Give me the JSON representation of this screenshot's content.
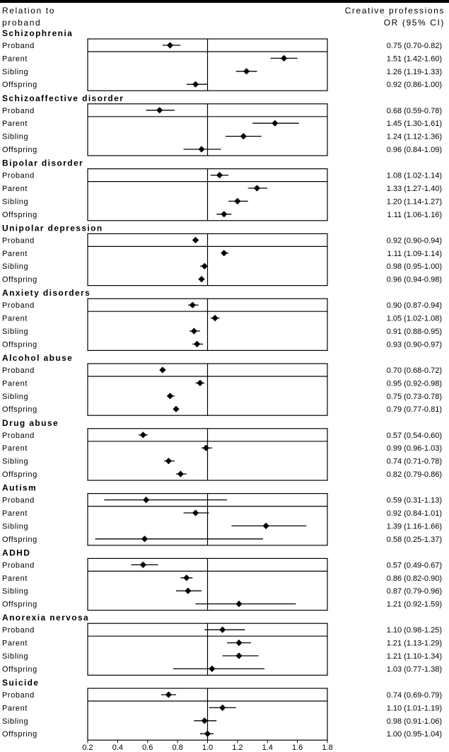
{
  "header": {
    "left_line1": "Relation to",
    "left_line2": "proband",
    "right_line1": "Creative professions",
    "right_line2": "OR (95% CI)"
  },
  "chart_data": {
    "type": "forest",
    "x_ticks": [
      "0.2",
      "0.4",
      "0.6",
      "0.8",
      "1.0",
      "1.2",
      "1.4",
      "1.6",
      "1.8"
    ],
    "xlim": [
      0.2,
      1.8
    ],
    "reference_line": 1.0,
    "groups": [
      {
        "name": "Schizophrenia",
        "rows": [
          {
            "relation": "Proband",
            "or": 0.75,
            "lo": 0.7,
            "hi": 0.82,
            "label": "0.75 (0.70-0.82)"
          },
          {
            "relation": "Parent",
            "or": 1.51,
            "lo": 1.42,
            "hi": 1.6,
            "label": "1.51 (1.42-1.60)"
          },
          {
            "relation": "Sibling",
            "or": 1.26,
            "lo": 1.19,
            "hi": 1.33,
            "label": "1.26 (1.19-1.33)"
          },
          {
            "relation": "Offspring",
            "or": 0.92,
            "lo": 0.86,
            "hi": 1.0,
            "label": "0.92 (0.86-1.00)"
          }
        ]
      },
      {
        "name": "Schizoaffective disorder",
        "rows": [
          {
            "relation": "Proband",
            "or": 0.68,
            "lo": 0.59,
            "hi": 0.78,
            "label": "0.68 (0.59-0.78)"
          },
          {
            "relation": "Parent",
            "or": 1.45,
            "lo": 1.3,
            "hi": 1.61,
            "label": "1.45 (1.30-1.61)"
          },
          {
            "relation": "Sibling",
            "or": 1.24,
            "lo": 1.12,
            "hi": 1.36,
            "label": "1.24 (1.12-1.36)"
          },
          {
            "relation": "Offspring",
            "or": 0.96,
            "lo": 0.84,
            "hi": 1.09,
            "label": "0.96 (0.84-1.09)"
          }
        ]
      },
      {
        "name": "Bipolar disorder",
        "rows": [
          {
            "relation": "Proband",
            "or": 1.08,
            "lo": 1.02,
            "hi": 1.14,
            "label": "1.08 (1.02-1.14)"
          },
          {
            "relation": "Parent",
            "or": 1.33,
            "lo": 1.27,
            "hi": 1.4,
            "label": "1.33 (1.27-1.40)"
          },
          {
            "relation": "Sibling",
            "or": 1.2,
            "lo": 1.14,
            "hi": 1.27,
            "label": "1.20 (1.14-1.27)"
          },
          {
            "relation": "Offspring",
            "or": 1.11,
            "lo": 1.06,
            "hi": 1.16,
            "label": "1.11 (1.06-1.16)"
          }
        ]
      },
      {
        "name": "Unipolar depression",
        "rows": [
          {
            "relation": "Proband",
            "or": 0.92,
            "lo": 0.9,
            "hi": 0.94,
            "label": "0.92 (0.90-0.94)"
          },
          {
            "relation": "Parent",
            "or": 1.11,
            "lo": 1.09,
            "hi": 1.14,
            "label": "1.11 (1.09-1.14)"
          },
          {
            "relation": "Sibling",
            "or": 0.98,
            "lo": 0.95,
            "hi": 1.0,
            "label": "0.98 (0.95-1.00)"
          },
          {
            "relation": "Offspring",
            "or": 0.96,
            "lo": 0.94,
            "hi": 0.98,
            "label": "0.96 (0.94-0.98)"
          }
        ]
      },
      {
        "name": "Anxiety disorders",
        "rows": [
          {
            "relation": "Proband",
            "or": 0.9,
            "lo": 0.87,
            "hi": 0.94,
            "label": "0.90 (0.87-0.94)"
          },
          {
            "relation": "Parent",
            "or": 1.05,
            "lo": 1.02,
            "hi": 1.08,
            "label": "1.05 (1.02-1.08)"
          },
          {
            "relation": "Sibling",
            "or": 0.91,
            "lo": 0.88,
            "hi": 0.95,
            "label": "0.91 (0.88-0.95)"
          },
          {
            "relation": "Offspring",
            "or": 0.93,
            "lo": 0.9,
            "hi": 0.97,
            "label": "0.93 (0.90-0.97)"
          }
        ]
      },
      {
        "name": "Alcohol abuse",
        "rows": [
          {
            "relation": "Proband",
            "or": 0.7,
            "lo": 0.68,
            "hi": 0.72,
            "label": "0.70 (0.68-0.72)"
          },
          {
            "relation": "Parent",
            "or": 0.95,
            "lo": 0.92,
            "hi": 0.98,
            "label": "0.95 (0.92-0.98)"
          },
          {
            "relation": "Sibling",
            "or": 0.75,
            "lo": 0.73,
            "hi": 0.78,
            "label": "0.75 (0.73-0.78)"
          },
          {
            "relation": "Offspring",
            "or": 0.79,
            "lo": 0.77,
            "hi": 0.81,
            "label": "0.79 (0.77-0.81)"
          }
        ]
      },
      {
        "name": "Drug abuse",
        "rows": [
          {
            "relation": "Proband",
            "or": 0.57,
            "lo": 0.54,
            "hi": 0.6,
            "label": "0.57 (0.54-0.60)"
          },
          {
            "relation": "Parent",
            "or": 0.99,
            "lo": 0.96,
            "hi": 1.03,
            "label": "0.99 (0.96-1.03)"
          },
          {
            "relation": "Sibling",
            "or": 0.74,
            "lo": 0.71,
            "hi": 0.78,
            "label": "0.74 (0.71-0.78)"
          },
          {
            "relation": "Offspring",
            "or": 0.82,
            "lo": 0.79,
            "hi": 0.86,
            "label": "0.82 (0.79-0.86)"
          }
        ]
      },
      {
        "name": "Autism",
        "rows": [
          {
            "relation": "Proband",
            "or": 0.59,
            "lo": 0.31,
            "hi": 1.13,
            "label": "0.59 (0.31-1.13)"
          },
          {
            "relation": "Parent",
            "or": 0.92,
            "lo": 0.84,
            "hi": 1.01,
            "label": "0.92 (0.84-1.01)"
          },
          {
            "relation": "Sibling",
            "or": 1.39,
            "lo": 1.16,
            "hi": 1.66,
            "label": "1.39 (1.16-1.66)"
          },
          {
            "relation": "Offspring",
            "or": 0.58,
            "lo": 0.25,
            "hi": 1.37,
            "label": "0.58 (0.25-1.37)"
          }
        ]
      },
      {
        "name": "ADHD",
        "rows": [
          {
            "relation": "Proband",
            "or": 0.57,
            "lo": 0.49,
            "hi": 0.67,
            "label": "0.57 (0.49-0.67)"
          },
          {
            "relation": "Parent",
            "or": 0.86,
            "lo": 0.82,
            "hi": 0.9,
            "label": "0.86 (0.82-0.90)"
          },
          {
            "relation": "Sibling",
            "or": 0.87,
            "lo": 0.79,
            "hi": 0.96,
            "label": "0.87 (0.79-0.96)"
          },
          {
            "relation": "Offspring",
            "or": 1.21,
            "lo": 0.92,
            "hi": 1.59,
            "label": "1.21 (0.92-1.59)"
          }
        ]
      },
      {
        "name": "Anorexia nervosa",
        "rows": [
          {
            "relation": "Proband",
            "or": 1.1,
            "lo": 0.98,
            "hi": 1.25,
            "label": "1.10 (0.98-1.25)"
          },
          {
            "relation": "Parent",
            "or": 1.21,
            "lo": 1.13,
            "hi": 1.29,
            "label": "1.21 (1.13-1.29)"
          },
          {
            "relation": "Sibling",
            "or": 1.21,
            "lo": 1.1,
            "hi": 1.34,
            "label": "1.21 (1.10-1.34)"
          },
          {
            "relation": "Offspring",
            "or": 1.03,
            "lo": 0.77,
            "hi": 1.38,
            "label": "1.03 (0.77-1.38)"
          }
        ]
      },
      {
        "name": "Suicide",
        "rows": [
          {
            "relation": "Proband",
            "or": 0.74,
            "lo": 0.69,
            "hi": 0.79,
            "label": "0.74 (0.69-0.79)"
          },
          {
            "relation": "Parent",
            "or": 1.1,
            "lo": 1.01,
            "hi": 1.19,
            "label": "1.10 (1.01-1.19)"
          },
          {
            "relation": "Sibling",
            "or": 0.98,
            "lo": 0.91,
            "hi": 1.06,
            "label": "0.98 (0.91-1.06)"
          },
          {
            "relation": "Offspring",
            "or": 1.0,
            "lo": 0.95,
            "hi": 1.04,
            "label": "1.00 (0.95-1.04)"
          }
        ]
      }
    ]
  }
}
